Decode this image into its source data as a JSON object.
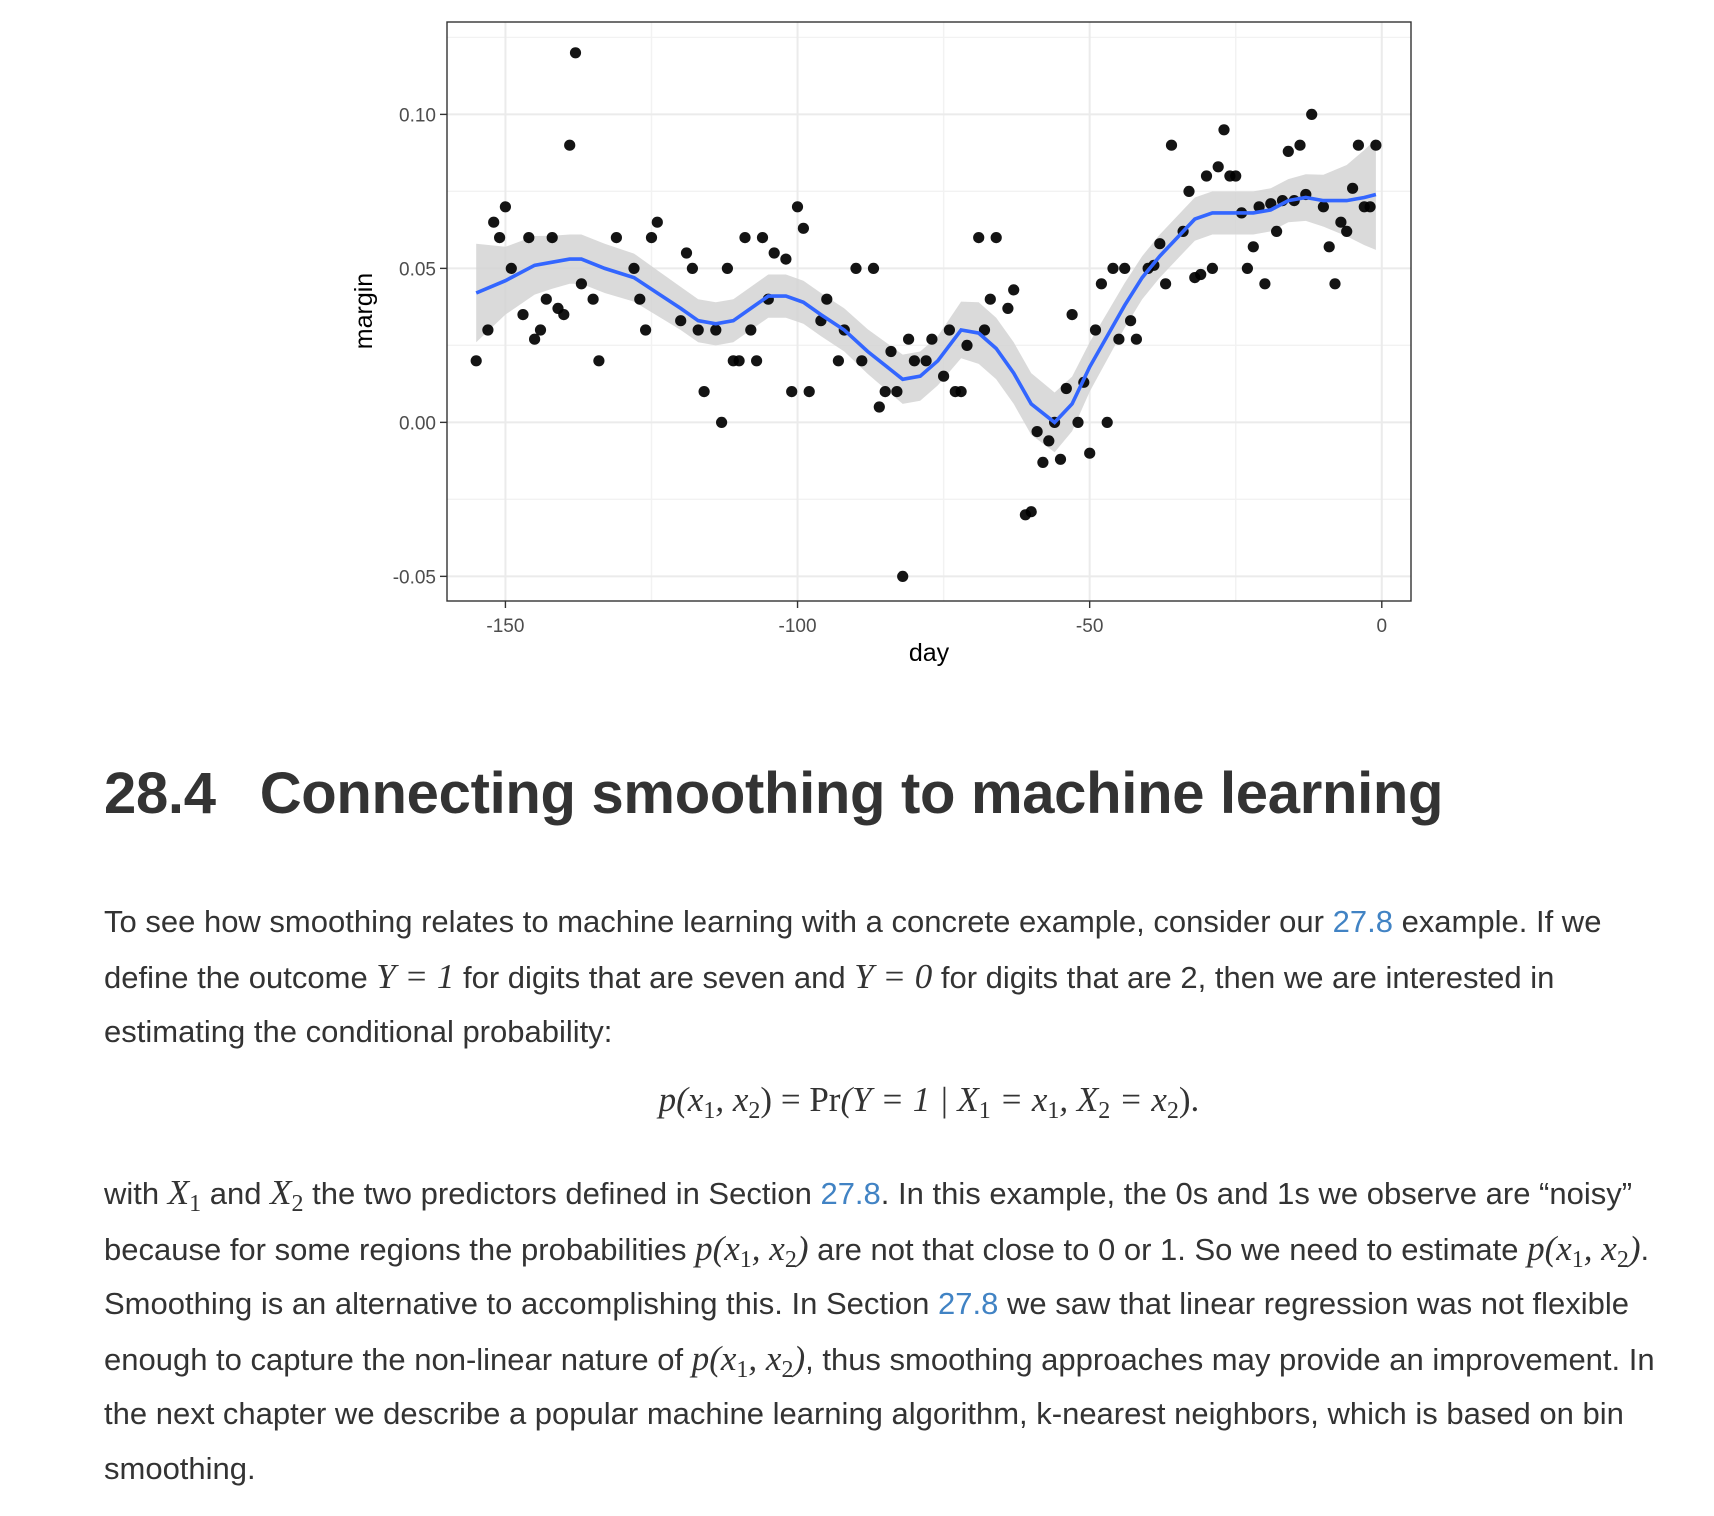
{
  "chart_data": {
    "type": "scatter",
    "xlabel": "day",
    "ylabel": "margin",
    "xlim": [
      -160,
      5
    ],
    "ylim": [
      -0.058,
      0.13
    ],
    "x_ticks": [
      -150,
      -100,
      -50,
      0
    ],
    "x_tick_labels": [
      "-150",
      "-100",
      "-50",
      "0"
    ],
    "y_ticks": [
      -0.05,
      0.0,
      0.05,
      0.1
    ],
    "y_tick_labels": [
      "-0.05",
      "0.00",
      "0.05",
      "0.10"
    ],
    "grid": true,
    "point_color": "#000000",
    "smooth_color": "#3366ff",
    "band_color": "#d3d3d3",
    "points": [
      [
        -155,
        0.02
      ],
      [
        -153,
        0.03
      ],
      [
        -152,
        0.065
      ],
      [
        -151,
        0.06
      ],
      [
        -150,
        0.07
      ],
      [
        -149,
        0.05
      ],
      [
        -147,
        0.035
      ],
      [
        -146,
        0.06
      ],
      [
        -145,
        0.027
      ],
      [
        -144,
        0.03
      ],
      [
        -143,
        0.04
      ],
      [
        -142,
        0.06
      ],
      [
        -141,
        0.037
      ],
      [
        -140,
        0.035
      ],
      [
        -139,
        0.09
      ],
      [
        -138,
        0.12
      ],
      [
        -137,
        0.045
      ],
      [
        -135,
        0.04
      ],
      [
        -134,
        0.02
      ],
      [
        -131,
        0.06
      ],
      [
        -128,
        0.05
      ],
      [
        -127,
        0.04
      ],
      [
        -126,
        0.03
      ],
      [
        -125,
        0.06
      ],
      [
        -124,
        0.065
      ],
      [
        -120,
        0.033
      ],
      [
        -119,
        0.055
      ],
      [
        -118,
        0.05
      ],
      [
        -117,
        0.03
      ],
      [
        -116,
        0.01
      ],
      [
        -114,
        0.03
      ],
      [
        -113,
        0.0
      ],
      [
        -112,
        0.05
      ],
      [
        -111,
        0.02
      ],
      [
        -110,
        0.02
      ],
      [
        -109,
        0.06
      ],
      [
        -108,
        0.03
      ],
      [
        -107,
        0.02
      ],
      [
        -106,
        0.06
      ],
      [
        -105,
        0.04
      ],
      [
        -104,
        0.055
      ],
      [
        -102,
        0.053
      ],
      [
        -101,
        0.01
      ],
      [
        -100,
        0.07
      ],
      [
        -99,
        0.063
      ],
      [
        -98,
        0.01
      ],
      [
        -96,
        0.033
      ],
      [
        -95,
        0.04
      ],
      [
        -93,
        0.02
      ],
      [
        -92,
        0.03
      ],
      [
        -90,
        0.05
      ],
      [
        -89,
        0.02
      ],
      [
        -87,
        0.05
      ],
      [
        -86,
        0.005
      ],
      [
        -85,
        0.01
      ],
      [
        -84,
        0.023
      ],
      [
        -83,
        0.01
      ],
      [
        -82,
        -0.05
      ],
      [
        -81,
        0.027
      ],
      [
        -80,
        0.02
      ],
      [
        -78,
        0.02
      ],
      [
        -77,
        0.027
      ],
      [
        -75,
        0.015
      ],
      [
        -74,
        0.03
      ],
      [
        -73,
        0.01
      ],
      [
        -72,
        0.01
      ],
      [
        -71,
        0.025
      ],
      [
        -69,
        0.06
      ],
      [
        -68,
        0.03
      ],
      [
        -67,
        0.04
      ],
      [
        -66,
        0.06
      ],
      [
        -64,
        0.037
      ],
      [
        -63,
        0.043
      ],
      [
        -61,
        -0.03
      ],
      [
        -60,
        -0.029
      ],
      [
        -59,
        -0.003
      ],
      [
        -58,
        -0.013
      ],
      [
        -57,
        -0.006
      ],
      [
        -56,
        0.0
      ],
      [
        -55,
        -0.012
      ],
      [
        -54,
        0.011
      ],
      [
        -53,
        0.035
      ],
      [
        -52,
        0.0
      ],
      [
        -51,
        0.013
      ],
      [
        -50,
        -0.01
      ],
      [
        -49,
        0.03
      ],
      [
        -48,
        0.045
      ],
      [
        -47,
        0.0
      ],
      [
        -46,
        0.05
      ],
      [
        -45,
        0.027
      ],
      [
        -44,
        0.05
      ],
      [
        -43,
        0.033
      ],
      [
        -42,
        0.027
      ],
      [
        -40,
        0.05
      ],
      [
        -39,
        0.051
      ],
      [
        -38,
        0.058
      ],
      [
        -37,
        0.045
      ],
      [
        -36,
        0.09
      ],
      [
        -34,
        0.062
      ],
      [
        -33,
        0.075
      ],
      [
        -32,
        0.047
      ],
      [
        -31,
        0.048
      ],
      [
        -30,
        0.08
      ],
      [
        -29,
        0.05
      ],
      [
        -28,
        0.083
      ],
      [
        -27,
        0.095
      ],
      [
        -26,
        0.08
      ],
      [
        -25,
        0.08
      ],
      [
        -24,
        0.068
      ],
      [
        -23,
        0.05
      ],
      [
        -22,
        0.057
      ],
      [
        -21,
        0.07
      ],
      [
        -20,
        0.045
      ],
      [
        -19,
        0.071
      ],
      [
        -18,
        0.062
      ],
      [
        -17,
        0.072
      ],
      [
        -16,
        0.088
      ],
      [
        -15,
        0.072
      ],
      [
        -14,
        0.09
      ],
      [
        -13,
        0.074
      ],
      [
        -12,
        0.1
      ],
      [
        -10,
        0.07
      ],
      [
        -9,
        0.057
      ],
      [
        -8,
        0.045
      ],
      [
        -7,
        0.065
      ],
      [
        -6,
        0.062
      ],
      [
        -5,
        0.076
      ],
      [
        -4,
        0.09
      ],
      [
        -3,
        0.07
      ],
      [
        -2,
        0.07
      ],
      [
        -1,
        0.09
      ]
    ],
    "smooth": [
      [
        -155,
        0.042
      ],
      [
        -150,
        0.046
      ],
      [
        -145,
        0.051
      ],
      [
        -142,
        0.052
      ],
      [
        -139,
        0.053
      ],
      [
        -137,
        0.053
      ],
      [
        -133,
        0.05
      ],
      [
        -128,
        0.047
      ],
      [
        -124,
        0.042
      ],
      [
        -120,
        0.037
      ],
      [
        -117,
        0.033
      ],
      [
        -114,
        0.032
      ],
      [
        -111,
        0.033
      ],
      [
        -108,
        0.037
      ],
      [
        -105,
        0.041
      ],
      [
        -102,
        0.041
      ],
      [
        -99,
        0.039
      ],
      [
        -96,
        0.035
      ],
      [
        -92,
        0.03
      ],
      [
        -88,
        0.023
      ],
      [
        -84,
        0.017
      ],
      [
        -82,
        0.014
      ],
      [
        -79,
        0.015
      ],
      [
        -76,
        0.02
      ],
      [
        -72,
        0.03
      ],
      [
        -69,
        0.029
      ],
      [
        -66,
        0.024
      ],
      [
        -63,
        0.016
      ],
      [
        -60,
        0.006
      ],
      [
        -56,
        0.0
      ],
      [
        -53,
        0.006
      ],
      [
        -50,
        0.018
      ],
      [
        -47,
        0.028
      ],
      [
        -44,
        0.038
      ],
      [
        -41,
        0.047
      ],
      [
        -38,
        0.054
      ],
      [
        -35,
        0.06
      ],
      [
        -32,
        0.066
      ],
      [
        -29,
        0.068
      ],
      [
        -26,
        0.068
      ],
      [
        -22,
        0.068
      ],
      [
        -19,
        0.069
      ],
      [
        -16,
        0.072
      ],
      [
        -13,
        0.073
      ],
      [
        -10,
        0.072
      ],
      [
        -6,
        0.072
      ],
      [
        -3,
        0.073
      ],
      [
        -1,
        0.074
      ]
    ],
    "band_halfwidth": [
      [
        -155,
        0.016
      ],
      [
        -150,
        0.011
      ],
      [
        -140,
        0.008
      ],
      [
        -130,
        0.008
      ],
      [
        -120,
        0.007
      ],
      [
        -110,
        0.007
      ],
      [
        -100,
        0.007
      ],
      [
        -90,
        0.007
      ],
      [
        -82,
        0.008
      ],
      [
        -75,
        0.008
      ],
      [
        -70,
        0.01
      ],
      [
        -63,
        0.01
      ],
      [
        -57,
        0.01
      ],
      [
        -50,
        0.008
      ],
      [
        -42,
        0.007
      ],
      [
        -35,
        0.007
      ],
      [
        -25,
        0.007
      ],
      [
        -15,
        0.007
      ],
      [
        -8,
        0.009
      ],
      [
        -1,
        0.018
      ]
    ]
  },
  "section": {
    "number": "28.4",
    "title": "Connecting smoothing to machine learning"
  },
  "para1": {
    "t1": "To see how smoothing relates to machine learning with a concrete example, consider our ",
    "ref1": "27.8",
    "t2": " example. If we define the outcome ",
    "m1": "Y = 1",
    "t3": " for digits that are seven and ",
    "m2": "Y = 0",
    "t4": " for digits that are 2, then we are interested in estimating the conditional probability:"
  },
  "equation": {
    "lhs": "p",
    "open": "(x",
    "s1": "1",
    "mid": ", x",
    "s2": "2",
    "close": ") = ",
    "pr": "Pr",
    "arg1": "(Y = 1 | X",
    "s3": "1",
    "arg2": " = x",
    "s4": "1",
    "arg3": ", X",
    "s5": "2",
    "arg4": " = x",
    "s6": "2",
    "end": ")."
  },
  "para2": {
    "t1": "with ",
    "X": "X",
    "s1": "1",
    "t2": " and ",
    "s2": "2",
    "t3": " the two predictors defined in Section ",
    "ref1": "27.8",
    "t4": ". In this example, the 0s and 1s we observe are “noisy” because for some regions the probabilities ",
    "p": "p(x",
    "c": ", x",
    "cl": ")",
    "t5": " are not that close to 0 or 1. So we need to estimate ",
    "t6": ". Smoothing is an alternative to accomplishing this. In Section ",
    "ref2": "27.8",
    "t7": " we saw that linear regression was not flexible enough to capture the non-linear nature of ",
    "t8": ", thus smoothing approaches may provide an improvement. In the next chapter we describe a popular machine learning algorithm, k-nearest neighbors, which is based on bin smoothing."
  }
}
